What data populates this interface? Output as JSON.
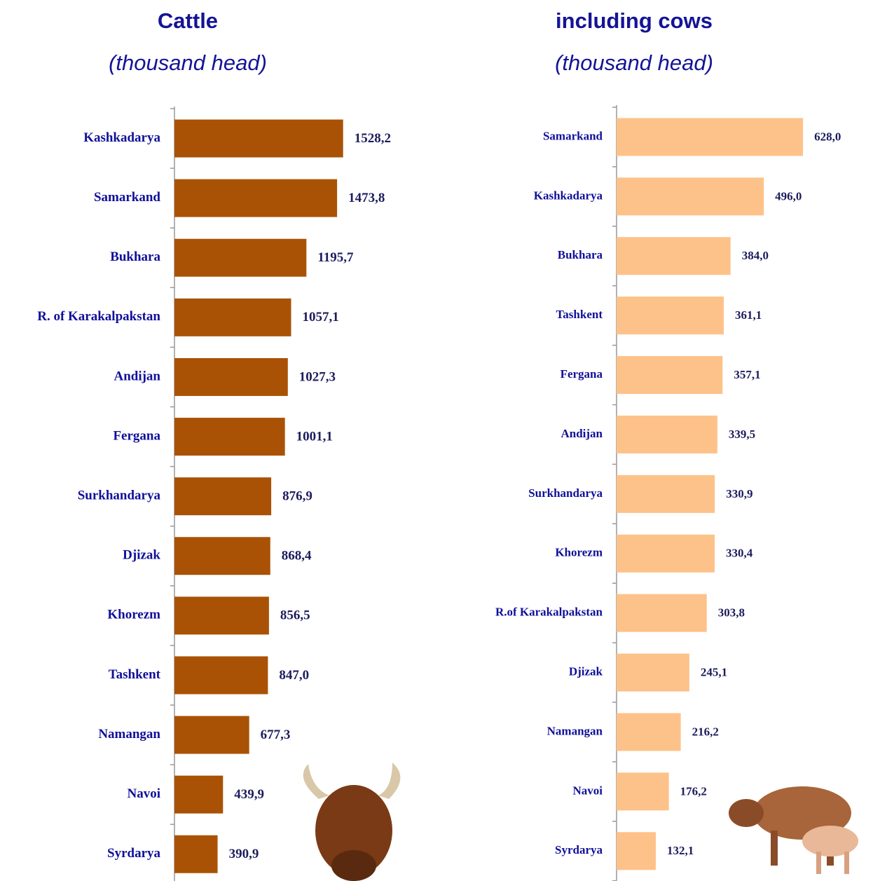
{
  "chart_data": [
    {
      "type": "barh",
      "title": "Cattle",
      "subtitle": "(thousand head)",
      "color": "#a95205",
      "categories": [
        "Kashkadarya",
        "Samarkand",
        "Bukhara",
        "R. of Karakalpakstan",
        "Andijan",
        "Fergana",
        "Surkhandarya",
        "Djizak",
        "Khorezm",
        "Tashkent",
        "Namangan",
        "Navoi",
        "Syrdarya"
      ],
      "values": [
        1528.2,
        1473.8,
        1195.7,
        1057.1,
        1027.3,
        1001.1,
        876.9,
        868.4,
        856.5,
        847.0,
        677.3,
        439.9,
        390.9
      ],
      "value_labels": [
        "1528,2",
        "1473,8",
        "1195,7",
        "1057,1",
        "1027,3",
        "1001,1",
        "876,9",
        "868,4",
        "856,5",
        "847,0",
        "677,3",
        "439,9",
        "390,9"
      ],
      "xlim": [
        0,
        2000
      ]
    },
    {
      "type": "barh",
      "title": "including cows",
      "subtitle": "(thousand head)",
      "color": "#fdc28a",
      "categories": [
        "Samarkand",
        "Kashkadarya",
        "Bukhara",
        "Tashkent",
        "Fergana",
        "Andijan",
        "Surkhandarya",
        "Khorezm",
        "R.of Karakalpakstan",
        "Djizak",
        "Namangan",
        "Navoi",
        "Syrdarya"
      ],
      "values": [
        628.0,
        496.0,
        384.0,
        361.1,
        357.1,
        339.5,
        330.9,
        330.4,
        303.8,
        245.1,
        216.2,
        176.2,
        132.1
      ],
      "value_labels": [
        "628,0",
        "496,0",
        "384,0",
        "361,1",
        "357,1",
        "339,5",
        "330,9",
        "330,4",
        "303,8",
        "245,1",
        "216,2",
        "176,2",
        "132,1"
      ],
      "xlim": [
        0,
        800
      ]
    }
  ]
}
